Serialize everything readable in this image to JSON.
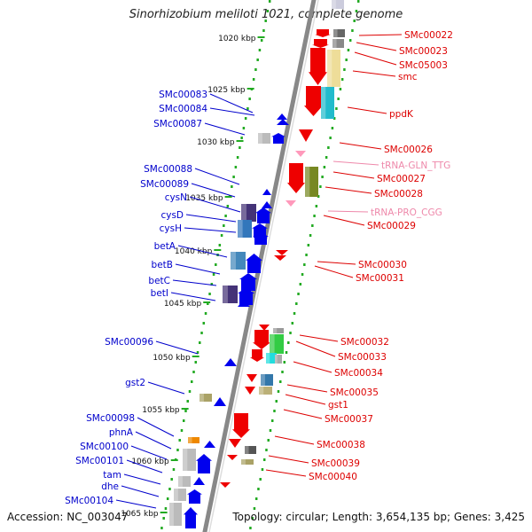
{
  "title": "Sinorhizobium meliloti 1021, complete genome",
  "footer": {
    "accession": "Accession: NC_003047",
    "topology": "Topology: circular; Length: 3,654,135 bp; Genes: 3,425"
  },
  "colors": {
    "left_label": "#0000cc",
    "right_label": "#dd0000",
    "trna_label": "#ee88aa",
    "left_arrow": "#0000ee",
    "right_arrow": "#ee0000",
    "trna_arrow": "#ff99bb",
    "ruler_tick": "#22aa22",
    "backbone": "#888888"
  },
  "kbp_ticks": [
    "1020 kbp",
    "1025 kbp",
    "1030 kbp",
    "1035 kbp",
    "1040 kbp",
    "1045 kbp",
    "1050 kbp",
    "1055 kbp",
    "1060 kbp",
    "1065 kbp"
  ],
  "left_genes": [
    "SMc00083",
    "SMc00084",
    "SMc00087",
    "SMc00088",
    "SMc00089",
    "cysN",
    "cysD",
    "cysH",
    "betA",
    "betB",
    "betC",
    "betI",
    "SMc00096",
    "gst2",
    "SMc00098",
    "phnA",
    "SMc00100",
    "SMc00101",
    "tam",
    "dhe",
    "SMc00104"
  ],
  "right_genes": [
    "SMc00022",
    "SMc00023",
    "SMc05003",
    "smc",
    "ppdK",
    "SMc00026",
    "tRNA-GLN_TTG",
    "SMc00027",
    "SMc00028",
    "tRNA-PRO_CGG",
    "SMc00029",
    "SMc00030",
    "SMc00031",
    "SMc00032",
    "SMc00033",
    "SMc00034",
    "SMc00035",
    "gst1",
    "SMc00037",
    "SMc00038",
    "SMc00039",
    "SMc00040"
  ],
  "trna_genes": [
    "tRNA-GLN_TTG",
    "tRNA-PRO_CGG"
  ]
}
